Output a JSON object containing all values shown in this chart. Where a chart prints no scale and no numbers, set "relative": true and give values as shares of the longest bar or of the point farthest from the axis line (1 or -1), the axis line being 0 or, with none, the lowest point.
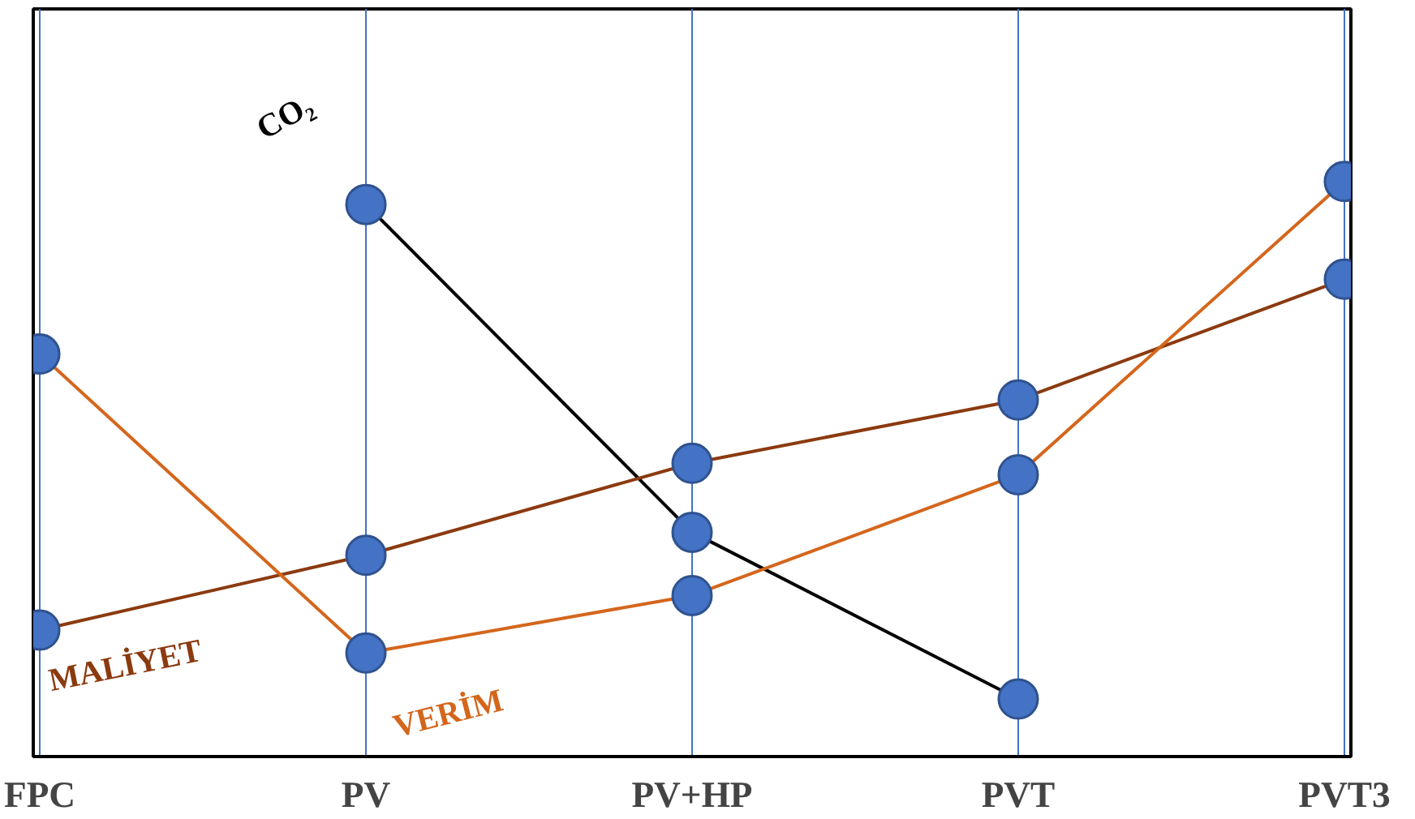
{
  "chart_data": {
    "type": "line",
    "relative": true,
    "categories": [
      "FPC",
      "PV",
      "PV+HP",
      "PVT",
      "PVT3"
    ],
    "series": [
      {
        "name": "CO₂",
        "color": "#000000",
        "values": [
          null,
          0.96,
          0.39,
          0.1,
          null
        ]
      },
      {
        "name": "MALİYET",
        "color": "#8b3a0f",
        "values": [
          0.22,
          0.35,
          0.51,
          0.62,
          0.83
        ]
      },
      {
        "name": "VERİM",
        "color": "#d4661c",
        "values": [
          0.7,
          0.18,
          0.28,
          0.49,
          1.0
        ]
      }
    ],
    "marker": "circle",
    "line_style": "solid",
    "grid": "x"
  }
}
